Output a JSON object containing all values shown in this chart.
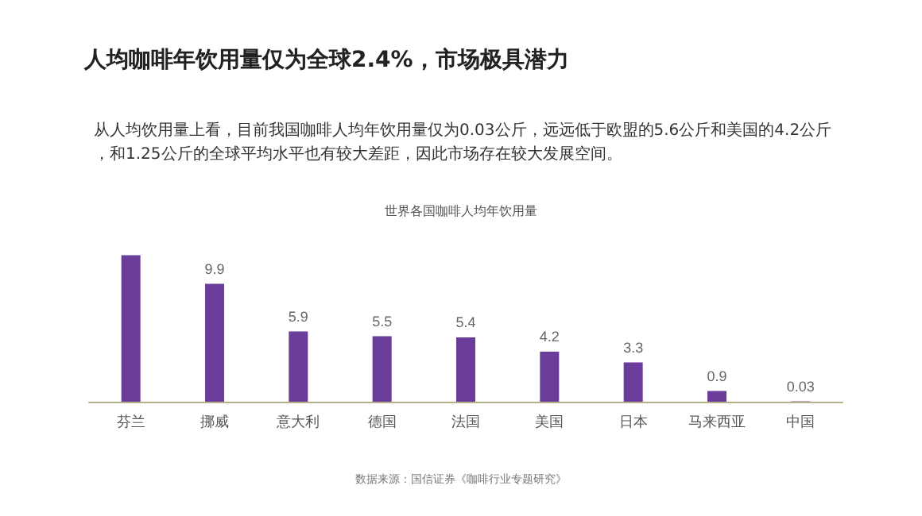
{
  "chart_data": {
    "type": "bar",
    "title": "人均咖啡年饮用量仅为全球2.4%，市场极具潜力",
    "subtitle": "从人均饮用量上看，目前我国咖啡人均年饮用量仅为0.03公斤，远远低于欧盟的5.6公斤和美国的4.2公斤，和1.25公斤的全球平均水平也有较大差距，因此市场存在较大发展空间。",
    "annotations": [
      "世界各国咖啡人均年饮用量",
      "数据来源：国信证券《咖啡行业专题研究》"
    ],
    "categories": [
      "芬兰",
      "挪威",
      "意大利",
      "德国",
      "法国",
      "美国",
      "日本",
      "马来西亚",
      "中国"
    ],
    "values": [
      12.3,
      9.9,
      5.9,
      5.5,
      5.4,
      4.2,
      3.3,
      0.9,
      0.03
    ],
    "value_labels": [
      null,
      "9.9",
      "5.9",
      "5.5",
      "5.4",
      "4.2",
      "3.3",
      "0.9",
      "0.03"
    ],
    "color": "#6a3d9a"
  }
}
